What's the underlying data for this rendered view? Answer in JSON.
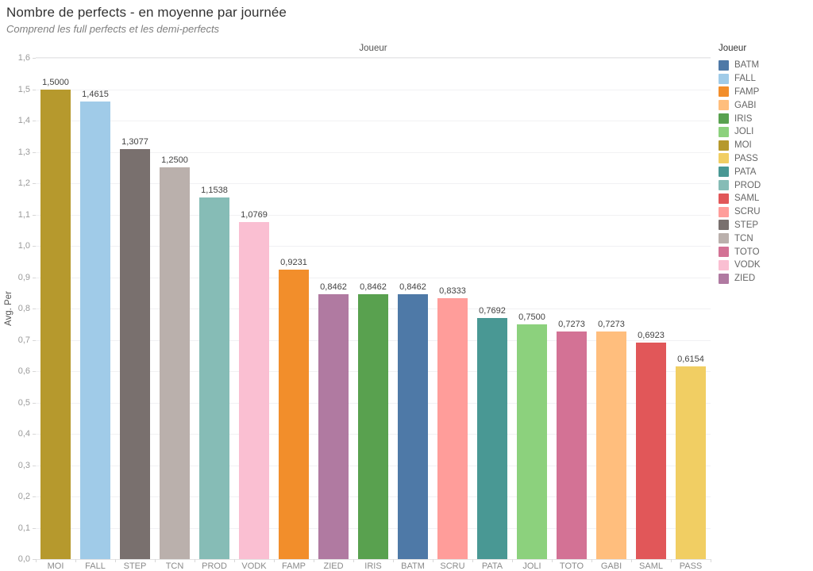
{
  "header": {
    "title": "Nombre de perfects - en moyenne par journée",
    "subtitle": "Comprend les full perfects et les demi-perfects"
  },
  "axes": {
    "x_title": "Joueur",
    "y_title": "Avg. Per",
    "y_ticks": [
      "0,0",
      "0,1",
      "0,2",
      "0,3",
      "0,4",
      "0,5",
      "0,6",
      "0,7",
      "0,8",
      "0,9",
      "1,0",
      "1,1",
      "1,2",
      "1,3",
      "1,4",
      "1,5",
      "1,6"
    ]
  },
  "legend": {
    "title": "Joueur",
    "entries": [
      "BATM",
      "FALL",
      "FAMP",
      "GABI",
      "IRIS",
      "JOLI",
      "MOI",
      "PASS",
      "PATA",
      "PROD",
      "SAML",
      "SCRU",
      "STEP",
      "TCN",
      "TOTO",
      "VODK",
      "ZIED"
    ]
  },
  "chart_data": {
    "type": "bar",
    "title": "Nombre de perfects - en moyenne par journée",
    "subtitle": "Comprend les full perfects et les demi-perfects",
    "xlabel": "Joueur",
    "ylabel": "Avg. Per",
    "ylim": [
      0,
      1.6
    ],
    "y_step": 0.1,
    "grid": true,
    "legend_position": "right",
    "categories": [
      "MOI",
      "FALL",
      "STEP",
      "TCN",
      "PROD",
      "VODK",
      "FAMP",
      "ZIED",
      "IRIS",
      "BATM",
      "SCRU",
      "PATA",
      "JOLI",
      "TOTO",
      "GABI",
      "SAML",
      "PASS"
    ],
    "values": [
      1.5,
      1.4615,
      1.3077,
      1.25,
      1.1538,
      1.0769,
      0.9231,
      0.8462,
      0.8462,
      0.8462,
      0.8333,
      0.7692,
      0.75,
      0.7273,
      0.7273,
      0.6923,
      0.6154
    ],
    "value_labels": [
      "1,5000",
      "1,4615",
      "1,3077",
      "1,2500",
      "1,1538",
      "1,0769",
      "0,9231",
      "0,8462",
      "0,8462",
      "0,8462",
      "0,8333",
      "0,7692",
      "0,7500",
      "0,7273",
      "0,7273",
      "0,6923",
      "0,6154"
    ],
    "colors": {
      "BATM": "#4E79A7",
      "FALL": "#A0CBE8",
      "FAMP": "#F28E2B",
      "GABI": "#FFBE7D",
      "IRIS": "#59A14F",
      "JOLI": "#8CD17D",
      "MOI": "#B6992D",
      "PASS": "#F1CE63",
      "PATA": "#499894",
      "PROD": "#86BCB6",
      "SAML": "#E15759",
      "SCRU": "#FF9D9A",
      "STEP": "#79706E",
      "TCN": "#BAB0AC",
      "TOTO": "#D37295",
      "VODK": "#FABFD2",
      "ZIED": "#B07AA1"
    }
  }
}
